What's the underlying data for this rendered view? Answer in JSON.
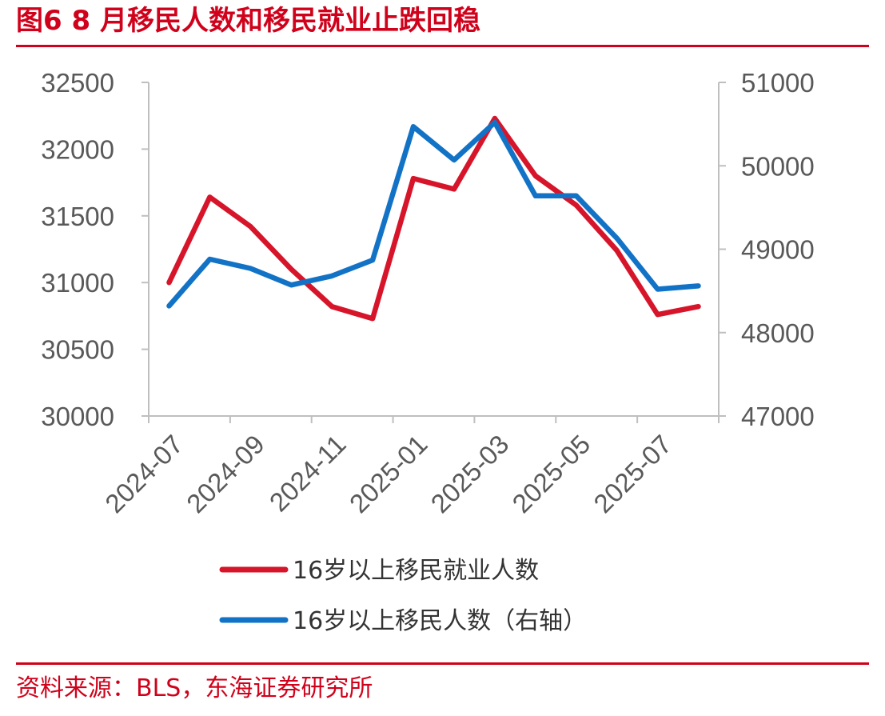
{
  "figure": {
    "title": "图6  8 月移民人数和移民就业止跌回稳",
    "source": "资料来源：BLS，东海证券研究所"
  },
  "colors": {
    "accent": "#d0021b",
    "series_employment": "#d7152a",
    "series_population": "#1273c6",
    "axis": "#bfbfbf"
  },
  "chart_data": {
    "type": "line",
    "x": [
      "2024-07",
      "2024-08",
      "2024-09",
      "2024-10",
      "2024-11",
      "2024-12",
      "2025-01",
      "2025-02",
      "2025-03",
      "2025-04",
      "2025-05",
      "2025-06",
      "2025-07",
      "2025-08"
    ],
    "x_tick_labels": [
      "2024-07",
      "2024-09",
      "2024-11",
      "2025-01",
      "2025-03",
      "2025-05",
      "2025-07"
    ],
    "y_left": {
      "min": 30000,
      "max": 32500,
      "ticks": [
        30000,
        30500,
        31000,
        31500,
        32000,
        32500
      ]
    },
    "y_right": {
      "min": 47000,
      "max": 51000,
      "ticks": [
        47000,
        48000,
        49000,
        50000,
        51000
      ]
    },
    "series": [
      {
        "name": "16岁以上移民就业人数",
        "axis": "left",
        "values": [
          31000,
          31640,
          31420,
          31100,
          30820,
          30730,
          31780,
          31700,
          32230,
          31800,
          31580,
          31240,
          30760,
          30820
        ]
      },
      {
        "name": "16岁以上移民人数（右轴）",
        "axis": "right",
        "values": [
          48320,
          48880,
          48770,
          48570,
          48680,
          48870,
          50470,
          50070,
          50520,
          49640,
          49640,
          49130,
          48520,
          48560
        ]
      }
    ],
    "legend_position": "bottom",
    "grid": false
  }
}
